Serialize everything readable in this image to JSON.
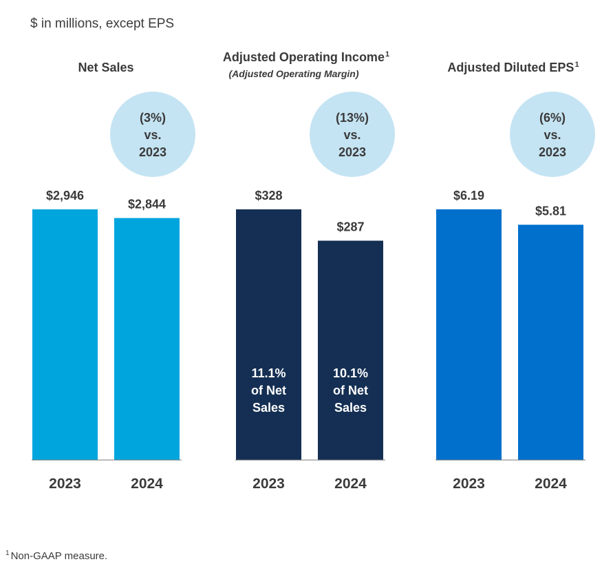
{
  "unit_note": "$ in millions, except EPS",
  "footnote": {
    "marker": "1",
    "text": "Non-GAAP measure."
  },
  "colors": {
    "net_sales_bar": "#00a5de",
    "operating_income_bar": "#142f53",
    "eps_bar": "#0070cc",
    "badge": "#c5e4f3",
    "axis_line": "#7a7a7a",
    "text": "#3a3a3a"
  },
  "chart_data": [
    {
      "type": "bar",
      "title": "Net Sales",
      "title_marker": "",
      "subtitle": "",
      "categories": [
        "2023",
        "2024"
      ],
      "values": [
        2946,
        2844
      ],
      "value_labels": [
        "$2,946",
        "$2,844"
      ],
      "change_badge": [
        "(3%)",
        "vs.",
        "2023"
      ],
      "inside_labels": [],
      "color_key": "net_sales_bar",
      "ylim": [
        0,
        2946
      ],
      "grid": false
    },
    {
      "type": "bar",
      "title": "Adjusted Operating Income",
      "title_marker": "1",
      "subtitle": "(Adjusted Operating Margin)",
      "categories": [
        "2023",
        "2024"
      ],
      "values": [
        328,
        287
      ],
      "value_labels": [
        "$328",
        "$287"
      ],
      "change_badge": [
        "(13%)",
        "vs.",
        "2023"
      ],
      "inside_labels": [
        [
          "11.1%",
          "of Net",
          "Sales"
        ],
        [
          "10.1%",
          "of Net",
          "Sales"
        ]
      ],
      "color_key": "operating_income_bar",
      "ylim": [
        0,
        328
      ],
      "grid": false
    },
    {
      "type": "bar",
      "title": "Adjusted Diluted EPS",
      "title_marker": "1",
      "subtitle": "",
      "categories": [
        "2023",
        "2024"
      ],
      "values": [
        6.19,
        5.81
      ],
      "value_labels": [
        "$6.19",
        "$5.81"
      ],
      "change_badge": [
        "(6%)",
        "vs.",
        "2023"
      ],
      "inside_labels": [],
      "color_key": "eps_bar",
      "ylim": [
        0,
        6.19
      ],
      "grid": false
    }
  ]
}
